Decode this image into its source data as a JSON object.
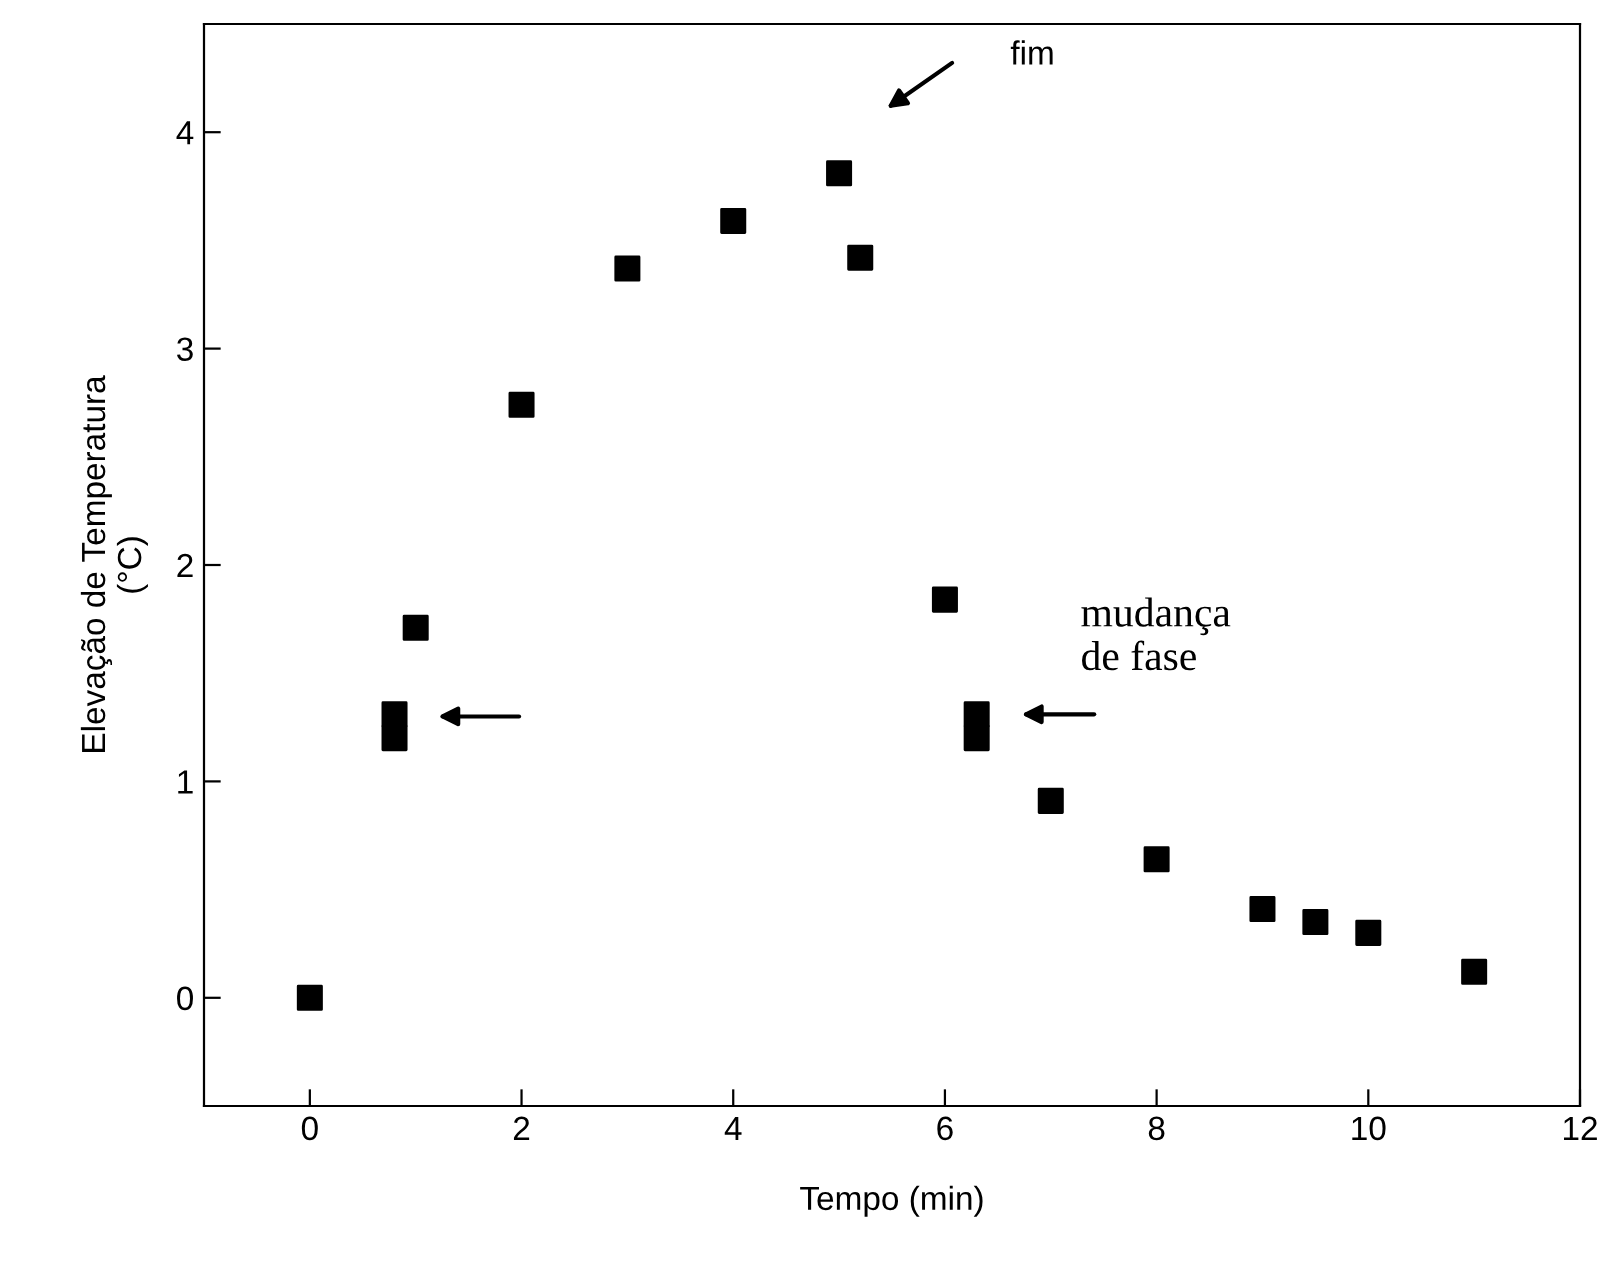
{
  "chart_data": {
    "type": "scatter",
    "xlabel": "Tempo (min)",
    "ylabel": "Elevação de Temperatura\n(°C)",
    "x": [
      0,
      0.8,
      0.8,
      1,
      2,
      3,
      4,
      5,
      5.2,
      6,
      6.3,
      6.3,
      7,
      8,
      9,
      9.5,
      10,
      11
    ],
    "series": [
      {
        "color": "#000000",
        "values": [
          0,
          1.31,
          1.2,
          1.71,
          2.74,
          3.37,
          3.59,
          3.81,
          3.42,
          1.84,
          1.31,
          1.2,
          0.91,
          0.64,
          0.41,
          0.35,
          0.3,
          0.12
        ]
      }
    ],
    "marker": "square",
    "xlim": [
      -1,
      12
    ],
    "ylim": [
      -0.5,
      4.5
    ],
    "xticks": [
      0,
      2,
      4,
      6,
      8,
      10,
      12
    ],
    "yticks": [
      0,
      1,
      2,
      3,
      4
    ],
    "grid": false,
    "legend": false,
    "annotations": [
      "fim",
      "mudança\nde fase"
    ]
  }
}
